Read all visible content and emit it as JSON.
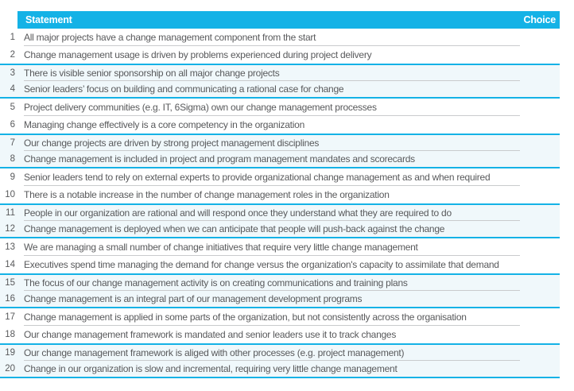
{
  "header": {
    "statement_label": "Statement",
    "choice_label": "Choice"
  },
  "rows": [
    {
      "num": 1,
      "text": "All major projects have a change management component from the start"
    },
    {
      "num": 2,
      "text": "Change management usage is driven by problems experienced during project delivery"
    },
    {
      "num": 3,
      "text": "There is visible senior sponsorship on all major change projects"
    },
    {
      "num": 4,
      "text": "Senior leaders’ focus on building and communicating a rational case for change"
    },
    {
      "num": 5,
      "text": "Project delivery communities (e.g. IT, 6Sigma) own our change management processes"
    },
    {
      "num": 6,
      "text": "Managing change effectively is a core competency in the organization"
    },
    {
      "num": 7,
      "text": "Our change projects are driven by strong project management disciplines"
    },
    {
      "num": 8,
      "text": "Change management is included in project and program management mandates and scorecards"
    },
    {
      "num": 9,
      "text": "Senior leaders tend to rely on external experts to provide organizational change management as and when required"
    },
    {
      "num": 10,
      "text": "There is a notable increase in the number of change management roles in the organization"
    },
    {
      "num": 11,
      "text": "People in our organization are rational and will respond once they understand what they are required to do"
    },
    {
      "num": 12,
      "text": "Change management is deployed when we can anticipate that people will push-back against the change"
    },
    {
      "num": 13,
      "text": "We are managing a small number of change initiatives that require very little change management"
    },
    {
      "num": 14,
      "text": "Executives spend time managing the demand for change versus the organization's capacity to assimilate that demand"
    },
    {
      "num": 15,
      "text": "The focus of our change management activity is on creating communications and training plans"
    },
    {
      "num": 16,
      "text": "Change management is an integral part of our management development programs"
    },
    {
      "num": 17,
      "text": "Change management is applied in some parts of the organization, but not consistently across the organisation"
    },
    {
      "num": 18,
      "text": "Our change management framework is mandated and senior leaders use it to track changes"
    },
    {
      "num": 19,
      "text": "Our change management framework is aliged with other processes (e.g. project management)"
    },
    {
      "num": 20,
      "text": "Change in our organization is slow and incremental, requiring very little change management"
    }
  ],
  "colors": {
    "accent_cyan": "#14b2e6",
    "band_fill": "#f0f8fb",
    "separator_gray": "#c9cbcd",
    "text_gray": "#58595b",
    "header_text": "#ffffff"
  }
}
